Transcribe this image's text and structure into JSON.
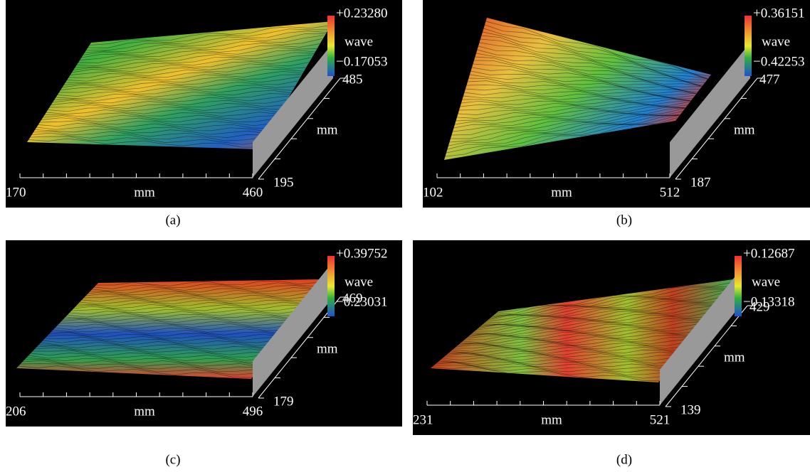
{
  "panels": [
    {
      "caption": "(a)",
      "colorbar": {
        "max": "+0.23280",
        "label": "wave",
        "min": "−0.17053"
      },
      "x_axis": {
        "min": "170",
        "label": "mm",
        "max": "460"
      },
      "depth_axis": {
        "far": "485",
        "label": "mm",
        "near": "195"
      }
    },
    {
      "caption": "(b)",
      "colorbar": {
        "max": "+0.36151",
        "label": "wave",
        "min": "−0.42253"
      },
      "x_axis": {
        "min": "102",
        "label": "mm",
        "max": "512"
      },
      "depth_axis": {
        "far": "477",
        "label": "mm",
        "near": "187"
      }
    },
    {
      "caption": "(c)",
      "colorbar": {
        "max": "+0.39752",
        "label": "wave",
        "min": "−0.23031"
      },
      "x_axis": {
        "min": "206",
        "label": "mm",
        "max": "496"
      },
      "depth_axis": {
        "far": "469",
        "label": "mm",
        "near": "179"
      }
    },
    {
      "caption": "(d)",
      "colorbar": {
        "max": "+0.12687",
        "label": "wave",
        "min": "−0.13318"
      },
      "x_axis": {
        "min": "231",
        "label": "mm",
        "max": "521"
      },
      "depth_axis": {
        "far": "429",
        "label": "mm",
        "near": "139"
      }
    }
  ]
}
